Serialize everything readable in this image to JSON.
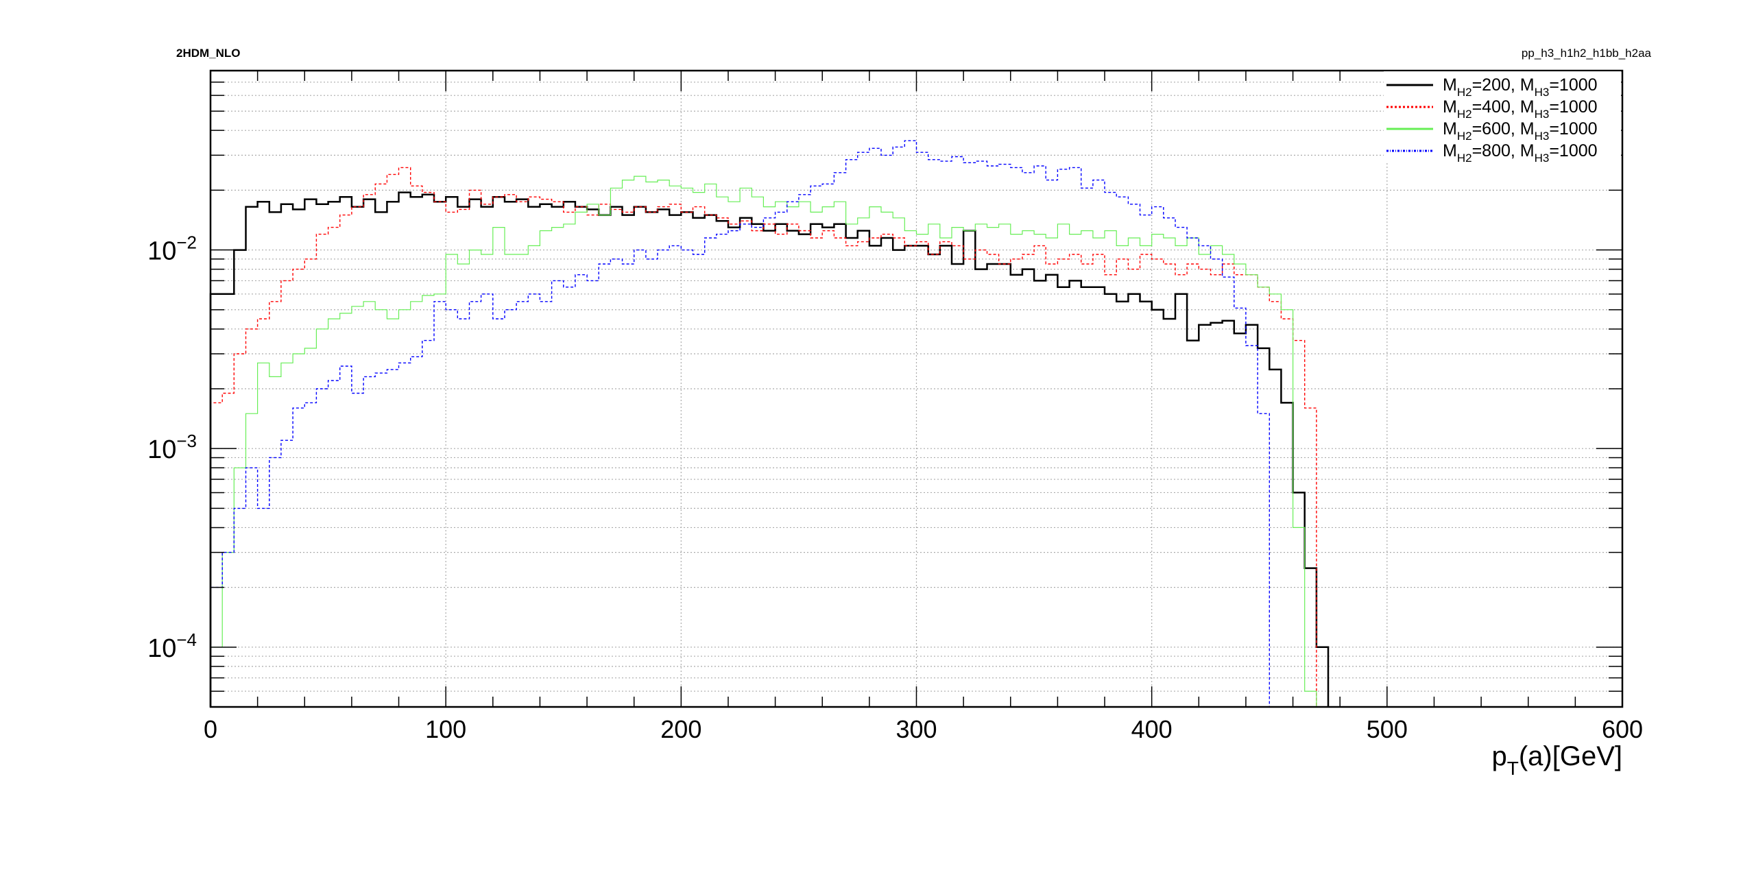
{
  "header": {
    "left_label": "2HDM_NLO",
    "right_label": "pp_h3_h1h2_h1bb_h2aa"
  },
  "chart_data": {
    "type": "line",
    "style": "step-histogram",
    "title": "",
    "xlabel": "p_T(a)[GeV]",
    "xlabel_parts": {
      "main": "p",
      "sub": "T",
      "rest": "(a)[GeV]"
    },
    "ylabel": "",
    "xlim": [
      0,
      600
    ],
    "ylim": [
      5e-05,
      0.08
    ],
    "yscale": "log",
    "grid": true,
    "legend_position": "top-right",
    "x_ticks": [
      "0",
      "100",
      "200",
      "300",
      "400",
      "500",
      "600"
    ],
    "y_ticks": [
      {
        "base": "10",
        "exp": "−4",
        "value": 0.0001
      },
      {
        "base": "10",
        "exp": "−3",
        "value": 0.001
      },
      {
        "base": "10",
        "exp": "−2",
        "value": 0.01
      }
    ],
    "bin_width": 5,
    "series": [
      {
        "name": "M_H2=200, M_H3=1000",
        "label_parts": {
          "a": "M",
          "a_sub": "H2",
          "b": "=200, M",
          "b_sub": "H3",
          "c": "=1000"
        },
        "color": "#000000",
        "dash": "",
        "line_width": 2.5,
        "legend_dash": "",
        "values": [
          0.006,
          0.006,
          0.01,
          0.0165,
          0.0175,
          0.0155,
          0.017,
          0.016,
          0.018,
          0.017,
          0.0175,
          0.0185,
          0.0165,
          0.018,
          0.0155,
          0.0175,
          0.0195,
          0.0185,
          0.019,
          0.0175,
          0.0185,
          0.0165,
          0.018,
          0.0165,
          0.0185,
          0.0175,
          0.018,
          0.0165,
          0.017,
          0.0165,
          0.0175,
          0.0165,
          0.016,
          0.015,
          0.0165,
          0.015,
          0.0165,
          0.0155,
          0.016,
          0.015,
          0.0155,
          0.0145,
          0.015,
          0.014,
          0.013,
          0.0145,
          0.0135,
          0.0125,
          0.0135,
          0.0125,
          0.012,
          0.0135,
          0.013,
          0.0135,
          0.0115,
          0.0125,
          0.0105,
          0.0115,
          0.01,
          0.0105,
          0.0105,
          0.0095,
          0.0105,
          0.0085,
          0.0125,
          0.008,
          0.0085,
          0.0085,
          0.0075,
          0.008,
          0.007,
          0.0075,
          0.0065,
          0.007,
          0.0065,
          0.0065,
          0.006,
          0.0055,
          0.006,
          0.0055,
          0.005,
          0.0045,
          0.006,
          0.0035,
          0.0042,
          0.0043,
          0.0044,
          0.0038,
          0.0042,
          0.0032,
          0.0025,
          0.0017,
          0.0006,
          0.00025,
          0.0001
        ]
      },
      {
        "name": "M_H2=400, M_H3=1000",
        "label_parts": {
          "a": "M",
          "a_sub": "H2",
          "b": "=400, M",
          "b_sub": "H3",
          "c": "=1000"
        },
        "color": "#ff0000",
        "dash": "4,3",
        "line_width": 1.4,
        "legend_dash": "3,3",
        "values": [
          0.0017,
          0.0019,
          0.003,
          0.004,
          0.0045,
          0.0055,
          0.007,
          0.008,
          0.009,
          0.012,
          0.013,
          0.015,
          0.0165,
          0.019,
          0.0215,
          0.024,
          0.026,
          0.021,
          0.0195,
          0.0175,
          0.0155,
          0.016,
          0.02,
          0.017,
          0.0185,
          0.019,
          0.0175,
          0.0185,
          0.018,
          0.0175,
          0.0155,
          0.0165,
          0.015,
          0.017,
          0.016,
          0.0155,
          0.0165,
          0.0155,
          0.0165,
          0.017,
          0.0155,
          0.0165,
          0.015,
          0.0145,
          0.0135,
          0.014,
          0.0125,
          0.0135,
          0.012,
          0.0135,
          0.0125,
          0.0115,
          0.0125,
          0.0115,
          0.0105,
          0.011,
          0.0115,
          0.012,
          0.0115,
          0.0105,
          0.011,
          0.0095,
          0.011,
          0.0105,
          0.009,
          0.01,
          0.0095,
          0.0085,
          0.009,
          0.0095,
          0.0105,
          0.0085,
          0.009,
          0.0095,
          0.0085,
          0.0095,
          0.0075,
          0.009,
          0.008,
          0.0095,
          0.009,
          0.0085,
          0.0075,
          0.0085,
          0.008,
          0.0075,
          0.0085,
          0.0075,
          0.0075,
          0.0065,
          0.0055,
          0.0045,
          0.0035,
          0.0016,
          5e-05
        ]
      },
      {
        "name": "M_H2=600, M_H3=1000",
        "label_parts": {
          "a": "M",
          "a_sub": "H2",
          "b": "=600, M",
          "b_sub": "H3",
          "c": "=1000"
        },
        "color": "#66ee55",
        "dash": "",
        "line_width": 1.2,
        "legend_dash": "",
        "values": [
          0.0001,
          0.0003,
          0.0008,
          0.0015,
          0.0027,
          0.0023,
          0.0027,
          0.003,
          0.0032,
          0.004,
          0.0045,
          0.0048,
          0.0052,
          0.0055,
          0.005,
          0.0045,
          0.005,
          0.0055,
          0.0059,
          0.006,
          0.0095,
          0.0085,
          0.01,
          0.0095,
          0.013,
          0.0095,
          0.0095,
          0.0105,
          0.0125,
          0.013,
          0.0135,
          0.0155,
          0.017,
          0.015,
          0.0205,
          0.0225,
          0.0235,
          0.022,
          0.0225,
          0.021,
          0.0205,
          0.0195,
          0.0215,
          0.0185,
          0.0175,
          0.0205,
          0.0185,
          0.0165,
          0.0175,
          0.0165,
          0.0175,
          0.0155,
          0.0165,
          0.0175,
          0.0135,
          0.0145,
          0.0165,
          0.0155,
          0.0145,
          0.0125,
          0.012,
          0.0135,
          0.0115,
          0.013,
          0.0125,
          0.0135,
          0.013,
          0.0135,
          0.012,
          0.0125,
          0.012,
          0.0115,
          0.0135,
          0.012,
          0.0125,
          0.0115,
          0.0125,
          0.0105,
          0.0115,
          0.0105,
          0.012,
          0.0115,
          0.0105,
          0.0115,
          0.0095,
          0.0105,
          0.0095,
          0.0085,
          0.0075,
          0.0065,
          0.006,
          0.005,
          0.0004,
          6e-05,
          5e-05
        ]
      },
      {
        "name": "M_H2=800, M_H3=1000",
        "label_parts": {
          "a": "M",
          "a_sub": "H2",
          "b": "=800, M",
          "b_sub": "H3",
          "c": "=1000"
        },
        "color": "#0000ff",
        "dash": "4,3",
        "line_width": 1.4,
        "legend_dash": "3,2,1,2",
        "values": [
          0.0002,
          0.0003,
          0.0005,
          0.0008,
          0.0005,
          0.0009,
          0.0011,
          0.0016,
          0.0017,
          0.002,
          0.0022,
          0.0026,
          0.0019,
          0.0023,
          0.0024,
          0.0025,
          0.0027,
          0.0029,
          0.0035,
          0.0055,
          0.005,
          0.0045,
          0.0055,
          0.006,
          0.0045,
          0.005,
          0.0055,
          0.006,
          0.0055,
          0.007,
          0.0065,
          0.0075,
          0.007,
          0.0085,
          0.009,
          0.0085,
          0.01,
          0.009,
          0.01,
          0.0105,
          0.01,
          0.0095,
          0.0115,
          0.012,
          0.0125,
          0.0135,
          0.013,
          0.0145,
          0.0155,
          0.0175,
          0.019,
          0.021,
          0.0215,
          0.0245,
          0.0285,
          0.031,
          0.0325,
          0.03,
          0.033,
          0.0355,
          0.031,
          0.0285,
          0.028,
          0.0295,
          0.0275,
          0.028,
          0.0265,
          0.027,
          0.026,
          0.0245,
          0.0265,
          0.0225,
          0.0255,
          0.026,
          0.0205,
          0.0225,
          0.0195,
          0.0185,
          0.017,
          0.015,
          0.0165,
          0.0145,
          0.013,
          0.0115,
          0.0105,
          0.009,
          0.0073,
          0.0051,
          0.0033,
          0.0015,
          5e-05
        ]
      }
    ]
  }
}
